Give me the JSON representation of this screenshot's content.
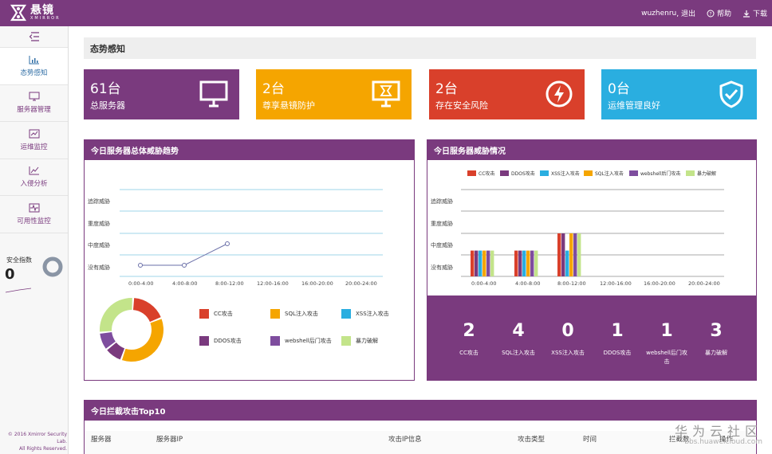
{
  "header": {
    "logo_cn": "悬镜",
    "logo_en": "XMIRROR",
    "user": "wuzhenru",
    "logout": ", 退出",
    "help": "帮助",
    "download": "下载"
  },
  "sidebar": {
    "items": [
      {
        "label": "态势感知",
        "icon": "bar-chart-icon",
        "active": true
      },
      {
        "label": "服务器管理",
        "icon": "monitor-icon",
        "active": false
      },
      {
        "label": "运维监控",
        "icon": "trend-icon",
        "active": false
      },
      {
        "label": "入侵分析",
        "icon": "line-chart-icon",
        "active": false
      },
      {
        "label": "可用性监控",
        "icon": "pulse-icon",
        "active": false
      }
    ],
    "security_index_label": "安全指数",
    "security_index_value": "0",
    "copyright_line1": "© 2016 Xmirror Security Lab.",
    "copyright_line2": "All Rights Reserved."
  },
  "page": {
    "title": "态势感知"
  },
  "cards": [
    {
      "num": "61台",
      "label": "总服务器",
      "color": "#7a3a7e",
      "icon": "monitor-icon"
    },
    {
      "num": "2台",
      "label": "尊享悬镜防护",
      "color": "#f5a500",
      "icon": "shield-monitor-icon"
    },
    {
      "num": "2台",
      "label": "存在安全风险",
      "color": "#d9402b",
      "icon": "lightning-icon"
    },
    {
      "num": "0台",
      "label": "运维管理良好",
      "color": "#2aaee0",
      "icon": "check-shield-icon"
    }
  ],
  "trend_panel": {
    "title": "今日服务器总体威胁趋势",
    "y_labels": [
      "追踪威胁",
      "重度威胁",
      "中度威胁",
      "没有威胁"
    ],
    "x_labels": [
      "0:00-4:00",
      "4:00-8:00",
      "8:00-12:00",
      "12:00-16:00",
      "16:00-20:00",
      "20:00-24:00"
    ],
    "legend": [
      {
        "label": "CC攻击",
        "color": "#d9402b"
      },
      {
        "label": "SQL注入攻击",
        "color": "#f5a500"
      },
      {
        "label": "XSS注入攻击",
        "color": "#2aaee0"
      },
      {
        "label": "DDOS攻击",
        "color": "#7a3a7e"
      },
      {
        "label": "webshell后门攻击",
        "color": "#7e4d9e"
      },
      {
        "label": "暴力破解",
        "color": "#c3e48a"
      }
    ]
  },
  "threat_panel": {
    "title": "今日服务器威胁情况",
    "legend": [
      {
        "label": "CC攻击",
        "color": "#d9402b"
      },
      {
        "label": "DDOS攻击",
        "color": "#7a3a7e"
      },
      {
        "label": "XSS注入攻击",
        "color": "#2aaee0"
      },
      {
        "label": "SQL注入攻击",
        "color": "#f5a500"
      },
      {
        "label": "webshell后门攻击",
        "color": "#7e4d9e"
      },
      {
        "label": "暴力破解",
        "color": "#c3e48a"
      }
    ],
    "y_labels": [
      "追踪威胁",
      "重度威胁",
      "中度威胁",
      "没有威胁"
    ],
    "x_labels": [
      "0:00-4:00",
      "4:00-8:00",
      "8:00-12:00",
      "12:00-16:00",
      "16:00-20:00",
      "20:00-24:00"
    ],
    "stats": [
      {
        "num": "2",
        "label": "CC攻击"
      },
      {
        "num": "4",
        "label": "SQL注入攻击"
      },
      {
        "num": "0",
        "label": "XSS注入攻击"
      },
      {
        "num": "1",
        "label": "DDOS攻击"
      },
      {
        "num": "1",
        "label": "webshell后门攻击"
      },
      {
        "num": "3",
        "label": "暴力破解"
      }
    ]
  },
  "top10_panel": {
    "title": "今日拦截攻击Top10",
    "columns": [
      "服务器",
      "服务器IP",
      "攻击IP信息",
      "攻击类型",
      "时间",
      "拦截数",
      "操作"
    ]
  },
  "watermark": {
    "line1": "华为云社区",
    "line2": "bbs.huaweicloud.com"
  },
  "chart_data": [
    {
      "type": "line",
      "title": "今日服务器总体威胁趋势",
      "categories": [
        "0:00-4:00",
        "4:00-8:00",
        "8:00-12:00"
      ],
      "y_levels": [
        "没有威胁",
        "中度威胁",
        "重度威胁",
        "追踪威胁"
      ],
      "values": [
        0,
        0,
        1
      ],
      "donut_series": [
        {
          "name": "CC攻击",
          "value": 2
        },
        {
          "name": "SQL注入攻击",
          "value": 4
        },
        {
          "name": "DDOS攻击",
          "value": 1
        },
        {
          "name": "webshell后门攻击",
          "value": 1
        },
        {
          "name": "暴力破解",
          "value": 3
        },
        {
          "name": "XSS注入攻击",
          "value": 0
        }
      ]
    },
    {
      "type": "bar",
      "title": "今日服务器威胁情况",
      "categories": [
        "0:00-4:00",
        "4:00-8:00",
        "8:00-12:00",
        "12:00-16:00",
        "16:00-20:00",
        "20:00-24:00"
      ],
      "y_levels": [
        "没有威胁",
        "中度威胁",
        "重度威胁",
        "追踪威胁"
      ],
      "series": [
        {
          "name": "CC攻击",
          "values": [
            0.6,
            0.6,
            1,
            0,
            0,
            0
          ]
        },
        {
          "name": "DDOS攻击",
          "values": [
            0.6,
            0.6,
            1,
            0,
            0,
            0
          ]
        },
        {
          "name": "XSS注入攻击",
          "values": [
            0.6,
            0.6,
            0.6,
            0,
            0,
            0
          ]
        },
        {
          "name": "SQL注入攻击",
          "values": [
            0.6,
            0.6,
            1,
            0,
            0,
            0
          ]
        },
        {
          "name": "webshell后门攻击",
          "values": [
            0.6,
            0.6,
            1,
            0,
            0,
            0
          ]
        },
        {
          "name": "暴力破解",
          "values": [
            0.6,
            0.6,
            1,
            0,
            0,
            0
          ]
        }
      ]
    }
  ]
}
